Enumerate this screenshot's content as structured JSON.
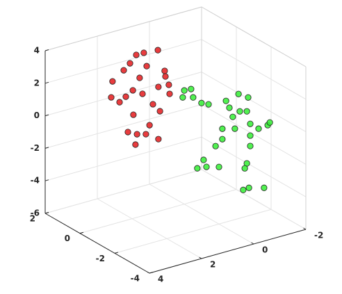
{
  "chart_data": {
    "type": "scatter3",
    "xlim": [
      -2,
      4
    ],
    "ylim": [
      -4,
      2
    ],
    "zlim": [
      -6,
      4
    ],
    "xticks": [
      -2,
      0,
      2,
      4
    ],
    "yticks": [
      -4,
      -2,
      0,
      2
    ],
    "zticks": [
      -6,
      -4,
      -2,
      0,
      2,
      4
    ],
    "grid": true,
    "series": [
      {
        "color": "#e41a1c",
        "x": [
          2.75,
          2.8,
          2.48,
          2.24,
          2.32,
          2.08,
          1.84,
          1.55,
          1.01,
          1.44,
          0.75,
          1.71,
          1.97,
          1.6,
          0.99,
          0.59,
          0.56,
          1.2,
          1.95,
          2.16,
          1.81,
          1.47,
          1.33,
          1.87,
          0.99,
          0.72,
          0.93
        ],
        "y": [
          0,
          0,
          0,
          0,
          0,
          0,
          0,
          0,
          0,
          0,
          0,
          0,
          0,
          0,
          0,
          0,
          0,
          0,
          0,
          0,
          0,
          0,
          0,
          0,
          0,
          0,
          0
        ],
        "z": [
          2.78,
          1.82,
          1.38,
          1.61,
          3.27,
          3.59,
          4.0,
          4.0,
          3.92,
          3.13,
          2.53,
          2.53,
          1.88,
          1.5,
          1.65,
          1.6,
          1.03,
          0.68,
          0.37,
          -0.6,
          -0.89,
          -1.04,
          -0.55,
          -1.5,
          -1.56,
          2.17,
          0.13
        ]
      },
      {
        "color": "#33ee33",
        "x": [
          1.33,
          1.07,
          1.39,
          0.99,
          0.67,
          0.4,
          -0.27,
          -0.4,
          -0.75,
          -1.12,
          -0.8,
          -1.07,
          -0.53,
          -0.13,
          -0.61,
          -1.2,
          -1.52,
          -1.87,
          -0.13,
          0.13,
          -1.2,
          -1.2,
          0.59,
          0.48,
          0.83,
          0,
          -1.07,
          -0.99,
          -0.93,
          -1.15,
          -1.73,
          -1.95
        ],
        "y": [
          -2,
          -2,
          -2,
          -2,
          -2,
          -2,
          -2,
          -2,
          -2,
          -2,
          -2,
          -2,
          -2,
          -2,
          -2,
          -2,
          -2,
          -2,
          -2,
          -2,
          -2,
          -2,
          -2,
          -2,
          -2,
          -2,
          -2,
          -2,
          -2,
          -2,
          -2,
          -2
        ],
        "z": [
          2.81,
          2.78,
          2.41,
          2.23,
          1.74,
          1.54,
          1.45,
          0.97,
          1.66,
          1.28,
          0.57,
          0.45,
          0.35,
          -0.2,
          -0.41,
          -0.38,
          -0.82,
          -0.76,
          -0.84,
          -1.15,
          -1.1,
          -1.74,
          -1.79,
          -2.27,
          -2.2,
          -2.49,
          -2.75,
          -3.02,
          -4.32,
          -4.29,
          -4.55,
          -0.63
        ]
      }
    ]
  }
}
